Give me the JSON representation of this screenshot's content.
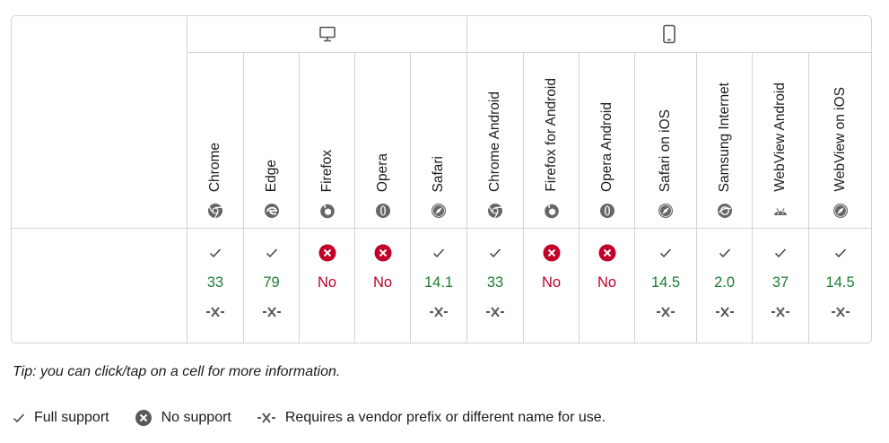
{
  "platforms": [
    {
      "name": "desktop-icon",
      "span": 5
    },
    {
      "name": "mobile-icon",
      "span": 7
    }
  ],
  "browsers": [
    {
      "name": "Chrome",
      "icon": "chrome-icon"
    },
    {
      "name": "Edge",
      "icon": "edge-icon"
    },
    {
      "name": "Firefox",
      "icon": "firefox-icon"
    },
    {
      "name": "Opera",
      "icon": "opera-icon"
    },
    {
      "name": "Safari",
      "icon": "safari-icon"
    },
    {
      "name": "Chrome Android",
      "icon": "chrome-icon"
    },
    {
      "name": "Firefox for Android",
      "icon": "firefox-icon"
    },
    {
      "name": "Opera Android",
      "icon": "opera-icon"
    },
    {
      "name": "Safari on iOS",
      "icon": "safari-icon"
    },
    {
      "name": "Samsung Internet",
      "icon": "samsung-internet-icon"
    },
    {
      "name": "WebView Android",
      "icon": "android-icon"
    },
    {
      "name": "WebView on iOS",
      "icon": "safari-icon"
    }
  ],
  "support": [
    {
      "status": "yes",
      "version": "33",
      "prefix": true
    },
    {
      "status": "yes",
      "version": "79",
      "prefix": true
    },
    {
      "status": "no",
      "version": "No",
      "prefix": false
    },
    {
      "status": "no",
      "version": "No",
      "prefix": false
    },
    {
      "status": "yes",
      "version": "14.1",
      "prefix": true
    },
    {
      "status": "yes",
      "version": "33",
      "prefix": true
    },
    {
      "status": "no",
      "version": "No",
      "prefix": false
    },
    {
      "status": "no",
      "version": "No",
      "prefix": false
    },
    {
      "status": "yes",
      "version": "14.5",
      "prefix": true
    },
    {
      "status": "yes",
      "version": "2.0",
      "prefix": true
    },
    {
      "status": "yes",
      "version": "37",
      "prefix": true
    },
    {
      "status": "yes",
      "version": "14.5",
      "prefix": true
    }
  ],
  "colors": {
    "yes": "#1b7d32",
    "no": "#c1002a",
    "border": "#d4d4d4"
  },
  "tip": "Tip: you can click/tap on a cell for more information.",
  "legend": {
    "full_support": "Full support",
    "no_support": "No support",
    "prefix": "Requires a vendor prefix or different name for use."
  }
}
